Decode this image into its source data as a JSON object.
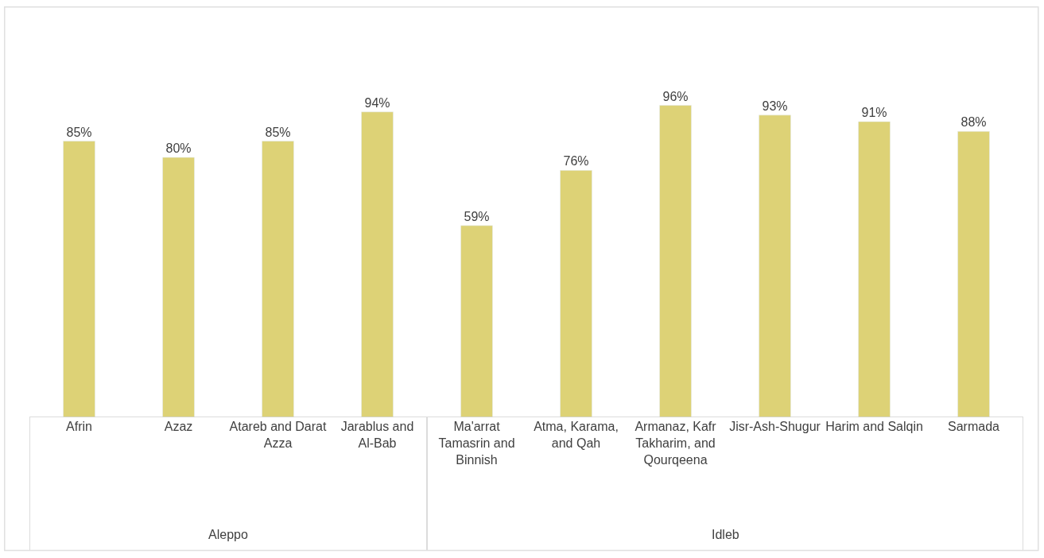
{
  "chart_data": {
    "type": "bar",
    "categories": [
      "Afrin",
      "Azaz",
      "Atareb and Darat Azza",
      "Jarablus and Al-Bab",
      "Ma'arrat Tamasrin and Binnish",
      "Atma, Karama, and Qah",
      "Armanaz, Kafr Takharim, and Qourqeena",
      "Jisr-Ash-Shugur",
      "Harim and Salqin",
      "Sarmada"
    ],
    "values": [
      85,
      80,
      85,
      94,
      59,
      76,
      96,
      93,
      91,
      88
    ],
    "value_labels": [
      "85%",
      "80%",
      "85%",
      "94%",
      "59%",
      "76%",
      "96%",
      "93%",
      "91%",
      "88%"
    ],
    "color": "#ddd276",
    "annotations": [
      "Aleppo",
      "Idleb"
    ]
  }
}
